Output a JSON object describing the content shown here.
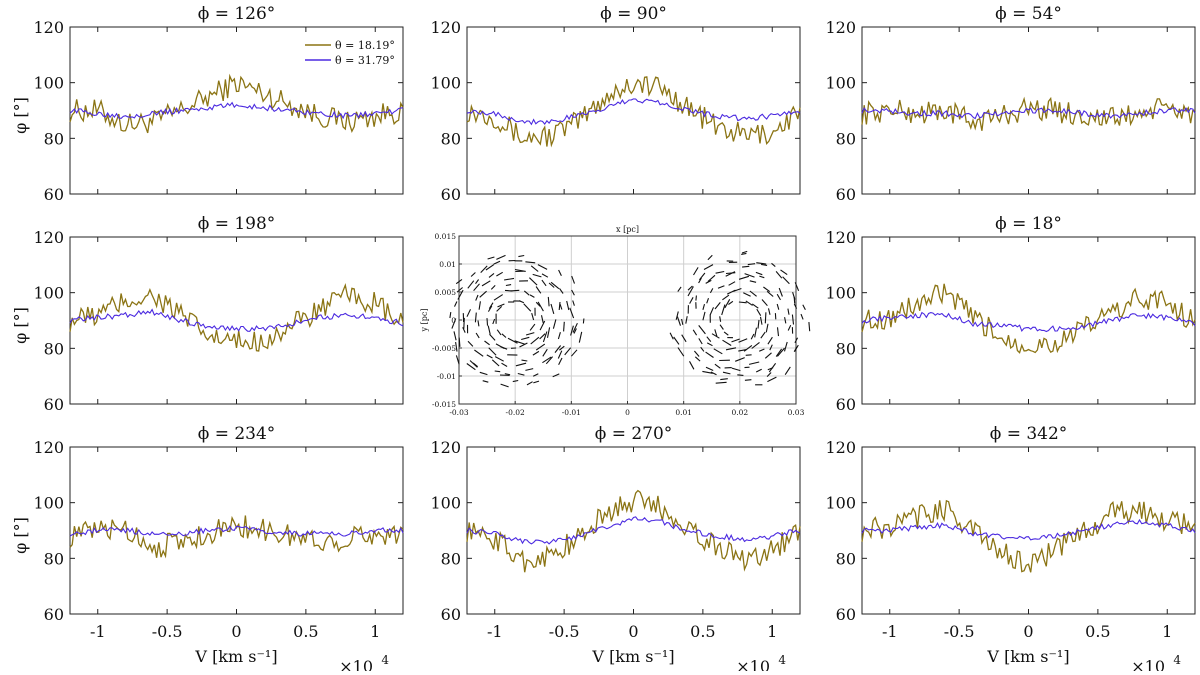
{
  "chart_data": {
    "type": "line",
    "x_range": [
      -12000,
      12000
    ],
    "xlabel": "V [km s⁻¹]",
    "x_multiplier": "×10",
    "x_multiplier_exp": "4",
    "xticks": [
      -10000,
      -5000,
      0,
      5000,
      10000
    ],
    "xtick_labels": [
      "-1",
      "-0.5",
      "0",
      "0.5",
      "1"
    ],
    "ylabel": "φ [°]",
    "ylim": [
      60,
      120
    ],
    "yticks": [
      60,
      80,
      100,
      120
    ],
    "ytick_labels": [
      "60",
      "80",
      "100",
      "120"
    ],
    "colors": {
      "theta_1819": "#8b7414",
      "theta_3179": "#4b2ae0"
    },
    "legend": [
      {
        "label": "θ = 18.19°",
        "color": "#8b7414"
      },
      {
        "label": "θ = 31.79°",
        "color": "#4b2ae0"
      }
    ],
    "panels": [
      {
        "title": "ϕ = 126°",
        "x": [
          -12000,
          -10000,
          -8000,
          -6000,
          -4000,
          -2000,
          0,
          2000,
          4000,
          6000,
          8000,
          10000,
          12000
        ],
        "series": [
          {
            "name": "θ = 18.19°",
            "values": [
              90,
              90,
              85,
              86,
              90,
              95,
              100,
              96,
              92,
              88,
              86,
              88,
              90
            ]
          },
          {
            "name": "θ = 31.79°",
            "values": [
              90,
              89,
              88,
              89,
              90,
              91,
              92,
              91,
              90,
              89,
              88,
              89,
              90
            ]
          }
        ]
      },
      {
        "title": "ϕ = 90°",
        "x": [
          -12000,
          -10000,
          -8000,
          -6000,
          -4000,
          -2000,
          0,
          2000,
          4000,
          6000,
          8000,
          10000,
          12000
        ],
        "series": [
          {
            "name": "θ = 18.19°",
            "values": [
              90,
              88,
              80,
              81,
              86,
              95,
              100,
              98,
              91,
              84,
              81,
              82,
              90
            ]
          },
          {
            "name": "θ = 31.79°",
            "values": [
              90,
              89,
              86,
              86,
              88,
              91,
              94,
              93,
              90,
              88,
              87,
              88,
              90
            ]
          }
        ]
      },
      {
        "title": "ϕ = 54°",
        "x": [
          -12000,
          -10000,
          -8000,
          -6000,
          -4000,
          -2000,
          0,
          2000,
          4000,
          6000,
          8000,
          10000,
          12000
        ],
        "series": [
          {
            "name": "θ = 18.19°",
            "values": [
              89,
              90,
              89,
              90,
              86,
              88,
              91,
              90,
              88,
              87,
              89,
              91,
              89
            ]
          },
          {
            "name": "θ = 31.79°",
            "values": [
              90,
              90,
              89,
              89,
              88,
              89,
              90,
              90,
              89,
              88,
              89,
              90,
              90
            ]
          }
        ]
      },
      {
        "title": "ϕ = 198°",
        "x": [
          -12000,
          -10000,
          -8000,
          -6000,
          -4000,
          -2000,
          0,
          2000,
          4000,
          6000,
          8000,
          10000,
          12000
        ],
        "series": [
          {
            "name": "θ = 18.19°",
            "values": [
              90,
              92,
              97,
              99,
              92,
              84,
              82,
              83,
              88,
              94,
              99,
              96,
              88
            ]
          },
          {
            "name": "θ = 31.79°",
            "values": [
              90,
              91,
              92,
              93,
              90,
              88,
              87,
              87,
              89,
              91,
              92,
              91,
              89
            ]
          }
        ]
      },
      {
        "title": "ϕ = 18°",
        "x": [
          -12000,
          -10000,
          -8000,
          -6000,
          -4000,
          -2000,
          0,
          2000,
          4000,
          6000,
          8000,
          10000,
          12000
        ],
        "series": [
          {
            "name": "θ = 18.19°",
            "values": [
              90,
              91,
              96,
              100,
              91,
              84,
              81,
              82,
              87,
              93,
              98,
              97,
              89
            ]
          },
          {
            "name": "θ = 31.79°",
            "values": [
              90,
              91,
              92,
              92,
              89,
              88,
              87,
              87,
              88,
              90,
              92,
              91,
              89
            ]
          }
        ]
      },
      {
        "title": "ϕ = 234°",
        "x": [
          -12000,
          -10000,
          -8000,
          -6000,
          -4000,
          -2000,
          0,
          2000,
          4000,
          6000,
          8000,
          10000,
          12000
        ],
        "series": [
          {
            "name": "θ = 18.19°",
            "values": [
              88,
              90,
              91,
              84,
              86,
              89,
              92,
              90,
              88,
              86,
              87,
              89,
              89
            ]
          },
          {
            "name": "θ = 31.79°",
            "values": [
              89,
              90,
              90,
              89,
              89,
              90,
              91,
              90,
              89,
              89,
              89,
              90,
              90
            ]
          }
        ]
      },
      {
        "title": "ϕ = 270°",
        "x": [
          -12000,
          -10000,
          -8000,
          -6000,
          -4000,
          -2000,
          0,
          2000,
          4000,
          6000,
          8000,
          10000,
          12000
        ],
        "series": [
          {
            "name": "θ = 18.19°",
            "values": [
              90,
              87,
              79,
              81,
              87,
              96,
              101,
              98,
              91,
              84,
              80,
              83,
              90
            ]
          },
          {
            "name": "θ = 31.79°",
            "values": [
              90,
              89,
              86,
              86,
              88,
              91,
              94,
              93,
              90,
              88,
              87,
              88,
              90
            ]
          }
        ]
      },
      {
        "title": "ϕ = 342°",
        "x": [
          -12000,
          -10000,
          -8000,
          -6000,
          -4000,
          -2000,
          0,
          2000,
          4000,
          6000,
          8000,
          10000,
          12000
        ],
        "series": [
          {
            "name": "θ = 18.19°",
            "values": [
              90,
              91,
              95,
              98,
              90,
              82,
              78,
              83,
              90,
              96,
              97,
              94,
              91
            ]
          },
          {
            "name": "θ = 31.79°",
            "values": [
              90,
              90,
              91,
              92,
              89,
              88,
              87,
              88,
              90,
              92,
              93,
              92,
              90
            ]
          }
        ]
      }
    ],
    "inset": {
      "type": "quiver",
      "xlabel": "x [pc]",
      "ylabel": "y [pc]",
      "xlim": [
        -0.03,
        0.03
      ],
      "ylim": [
        -0.015,
        0.015
      ],
      "xticks": [
        -0.03,
        -0.02,
        -0.01,
        0,
        0.01,
        0.02,
        0.03
      ],
      "xtick_labels": [
        "-0.03",
        "-0.02",
        "-0.01",
        "0",
        "0.01",
        "0.02",
        "0.03"
      ],
      "yticks": [
        -0.015,
        -0.01,
        -0.005,
        0,
        0.005,
        0.01,
        0.015
      ],
      "ytick_labels": [
        "-0.015",
        "-0.01",
        "-0.005",
        "0",
        "0.005",
        "0.01",
        "0.015"
      ],
      "vortices": [
        {
          "center": [
            -0.02,
            0.0
          ],
          "radius": 0.0115,
          "rotation": "counter-clockwise"
        },
        {
          "center": [
            0.02,
            0.0
          ],
          "radius": 0.0115,
          "rotation": "clockwise"
        }
      ]
    }
  }
}
